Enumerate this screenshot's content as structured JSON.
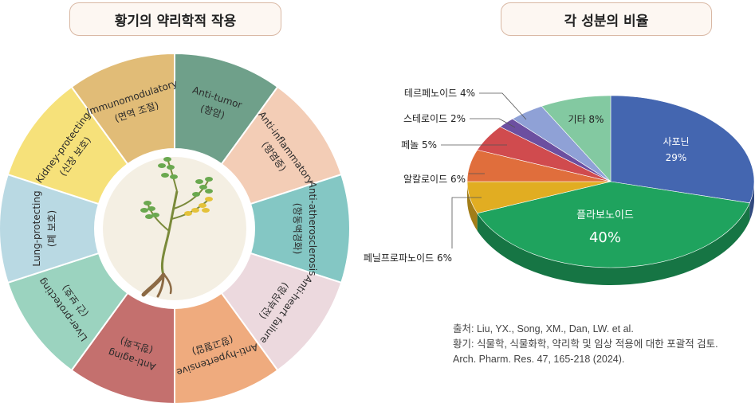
{
  "left_panel": {
    "title": "황기의 약리학적 작용",
    "segments": [
      {
        "en": "Anti-tumor",
        "ko": "(항암)",
        "color": "#6fa08a"
      },
      {
        "en": "Anti-inflammatory",
        "ko": "(항염증)",
        "color": "#f3cdb6"
      },
      {
        "en": "Anti-atherosclerosis",
        "ko": "(항동맥경화)",
        "color": "#84c7c4"
      },
      {
        "en": "Anti-heart failure",
        "ko": "(항심부전)",
        "color": "#ecd9de"
      },
      {
        "en": "Anti-hypertensive",
        "ko": "(항고혈압)",
        "color": "#efab7e"
      },
      {
        "en": "Anti-aging",
        "ko": "(항노화)",
        "color": "#c4706e"
      },
      {
        "en": "Liver-protecting",
        "ko": "(간 보호)",
        "color": "#9bd3bf"
      },
      {
        "en": "Lung-protecting",
        "ko": "(폐 보호)",
        "color": "#b9d9e3"
      },
      {
        "en": "Kidney-protecting",
        "ko": "(신장 보호)",
        "color": "#f6e17a"
      },
      {
        "en": "Immunomodulatory",
        "ko": "(면역 조절)",
        "color": "#e1bc77"
      }
    ]
  },
  "chart_data": {
    "type": "pie",
    "title": "각 성분의 비율",
    "slices": [
      {
        "label": "사포닌",
        "value": 29,
        "value_label": "29%",
        "color": "#4466b0"
      },
      {
        "label": "플라보노이드",
        "value": 40,
        "value_label": "40%",
        "color": "#1fa35e"
      },
      {
        "label": "페닐프로파노이드 6%",
        "value": 6,
        "color": "#e1ad22"
      },
      {
        "label": "알칼로이드 6%",
        "value": 6,
        "color": "#e06e3c"
      },
      {
        "label": "페놀 5%",
        "value": 5,
        "color": "#d04b4e"
      },
      {
        "label": "스테로이드 2%",
        "value": 2,
        "color": "#6c4fa0"
      },
      {
        "label": "테르페노이드 4%",
        "value": 4,
        "color": "#8fa1d6"
      },
      {
        "label": "기타 8%",
        "value": 8,
        "color": "#83c9a1"
      }
    ]
  },
  "source": {
    "line1": "출처: Liu, YX., Song, XM., Dan, LW. et al.",
    "line2": "황기: 식물학, 식물화학, 약리학 및 임상 적용에 대한 포괄적 검토.",
    "line3": "Arch. Pharm. Res. 47, 165-218 (2024)."
  }
}
